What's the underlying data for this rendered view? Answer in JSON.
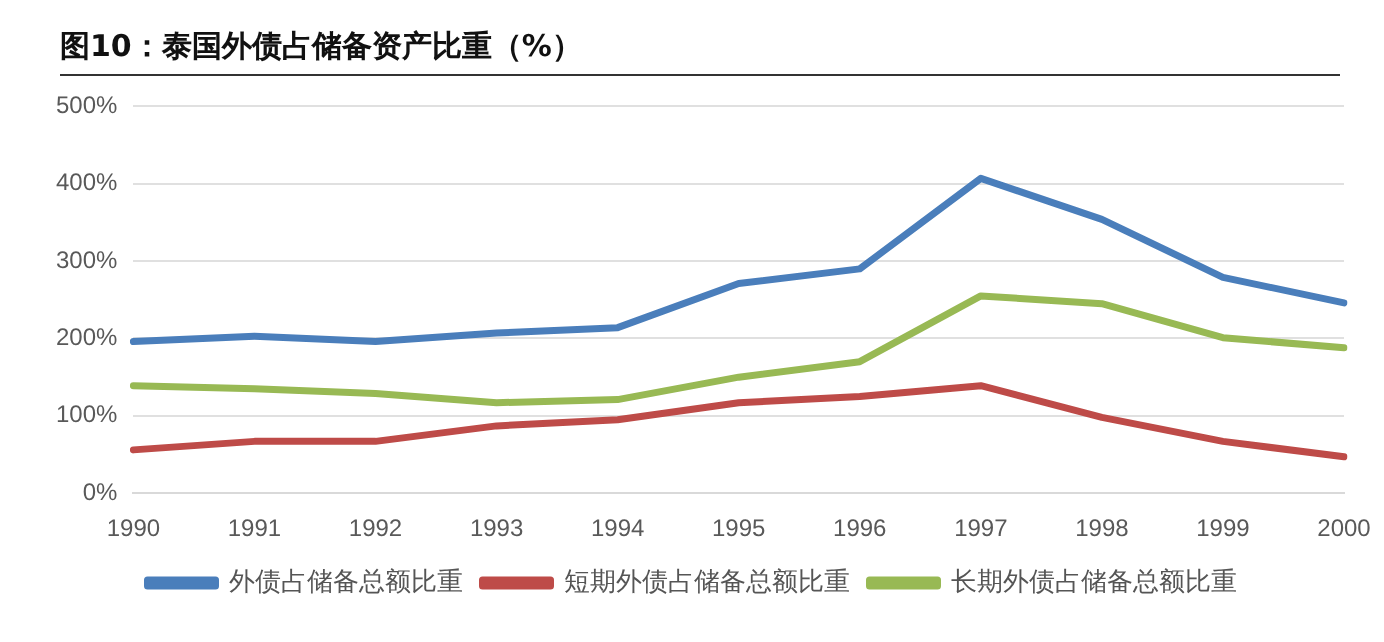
{
  "chart_data": {
    "type": "line",
    "title": "图10：泰国外债占储备资产比重（%）",
    "categories": [
      "1990",
      "1991",
      "1992",
      "1993",
      "1994",
      "1995",
      "1996",
      "1997",
      "1998",
      "1999",
      "2000"
    ],
    "series": [
      {
        "name": "外债占储备总额比重",
        "color": "#4a7ebb",
        "values": [
          196,
          203,
          196,
          207,
          214,
          271,
          290,
          407,
          354,
          279,
          246
        ]
      },
      {
        "name": "短期外债占储备总额比重",
        "color": "#be4b48",
        "values": [
          56,
          67,
          67,
          87,
          95,
          117,
          125,
          139,
          98,
          67,
          47
        ]
      },
      {
        "name": "长期外债占储备总额比重",
        "color": "#98b954",
        "values": [
          139,
          135,
          129,
          117,
          121,
          150,
          170,
          255,
          245,
          201,
          188
        ]
      }
    ],
    "ylim": [
      0,
      500
    ],
    "yticks": [
      {
        "value": 0,
        "label": "0%"
      },
      {
        "value": 100,
        "label": "100%"
      },
      {
        "value": 200,
        "label": "200%"
      },
      {
        "value": 300,
        "label": "300%"
      },
      {
        "value": 400,
        "label": "400%"
      },
      {
        "value": 500,
        "label": "500%"
      }
    ],
    "grid": "y",
    "legend": "bottom",
    "marker": "none",
    "line_style": "solid"
  }
}
